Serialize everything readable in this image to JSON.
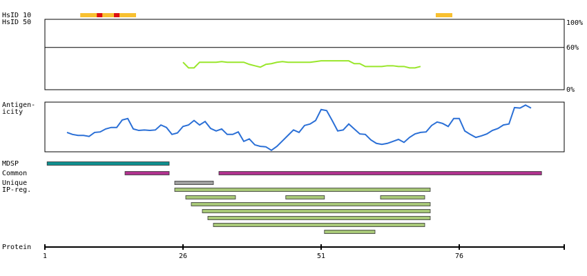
{
  "chart_data": {
    "type": "protein-map",
    "xlabel": "Protein",
    "xlim": [
      1,
      95
    ],
    "xticks": [
      1,
      26,
      51,
      76
    ],
    "hsid": [
      {
        "name": "HsID 10",
        "segments": [
          {
            "start": 7.4,
            "end": 17.5,
            "color": "#f8c030"
          },
          {
            "start": 10.4,
            "end": 11.4,
            "color": "#dd1111"
          },
          {
            "start": 13.5,
            "end": 14.5,
            "color": "#dd1111"
          },
          {
            "start": 71.75,
            "end": 74.75,
            "color": "#f8c030"
          }
        ]
      },
      {
        "name": "HsID 50",
        "segments": []
      }
    ],
    "similarity": {
      "ylim": [
        0,
        100
      ],
      "yticks": [
        {
          "value": 0,
          "label": "0%"
        },
        {
          "value": 60,
          "label": "60%"
        },
        {
          "value": 100,
          "label": "100%"
        }
      ],
      "color": "#99e62a",
      "x": [
        26,
        27,
        28,
        29,
        30,
        31,
        32,
        33,
        34,
        35,
        36,
        37,
        38,
        39,
        40,
        41,
        42,
        43,
        44,
        45,
        46,
        47,
        48,
        49,
        50,
        51,
        52,
        53,
        54,
        55,
        56,
        57,
        58,
        59,
        60,
        61,
        62,
        63,
        64,
        65,
        66,
        67,
        68,
        69
      ],
      "values": [
        39,
        31,
        31,
        39,
        39,
        39,
        39,
        40,
        39,
        39,
        39,
        39,
        36,
        34,
        32,
        36,
        37,
        39,
        40,
        39,
        39,
        39,
        39,
        39,
        40,
        41,
        41,
        41,
        41,
        41,
        41,
        37,
        37,
        33,
        33,
        33,
        33,
        34,
        34,
        33,
        33,
        31,
        31,
        33
      ]
    },
    "antigenicity": {
      "label": [
        "Antigen-",
        "icity"
      ],
      "ylim": [
        0,
        100
      ],
      "color": "#2a6fd6",
      "x": [
        5,
        6,
        7,
        8,
        9,
        10,
        11,
        12,
        13,
        14,
        15,
        16,
        17,
        18,
        19,
        20,
        21,
        22,
        23,
        24,
        25,
        26,
        27,
        28,
        29,
        30,
        31,
        32,
        33,
        34,
        35,
        36,
        37,
        38,
        39,
        40,
        41,
        42,
        43,
        44,
        45,
        46,
        47,
        48,
        49,
        50,
        51,
        52,
        53,
        54,
        55,
        56,
        57,
        58,
        59,
        60,
        61,
        62,
        63,
        64,
        65,
        66,
        67,
        68,
        69,
        70,
        71,
        72,
        73,
        74,
        75,
        76,
        77,
        78,
        79,
        80,
        81,
        82,
        83,
        84,
        85,
        86,
        87,
        88,
        89
      ],
      "values": [
        39,
        35,
        33,
        33,
        31,
        39,
        40,
        46,
        49,
        49,
        64,
        67,
        46,
        43,
        44,
        43,
        44,
        54,
        49,
        35,
        38,
        51,
        54,
        63,
        54,
        61,
        47,
        42,
        46,
        35,
        35,
        40,
        21,
        26,
        14,
        11,
        10,
        3,
        11,
        22,
        33,
        44,
        39,
        53,
        56,
        63,
        85,
        83,
        63,
        42,
        44,
        56,
        46,
        36,
        35,
        24,
        17,
        15,
        17,
        21,
        25,
        19,
        29,
        36,
        39,
        40,
        53,
        60,
        57,
        51,
        67,
        67,
        42,
        35,
        29,
        32,
        36,
        43,
        47,
        54,
        56,
        89,
        88,
        94,
        88
      ]
    },
    "features": [
      {
        "name": "MDSP",
        "color": "#0f9090",
        "rows": [
          [
            {
              "start": 1.4,
              "end": 23.5
            }
          ]
        ]
      },
      {
        "name": "Common",
        "color": "#b0338f",
        "rows": [
          [
            {
              "start": 15.5,
              "end": 23.5
            },
            {
              "start": 32.5,
              "end": 90.9
            }
          ]
        ]
      },
      {
        "name": "Unique",
        "color": "#a0a0a0",
        "rows": [
          [
            {
              "start": 24.5,
              "end": 31.5
            }
          ]
        ]
      },
      {
        "name": "IP-reg.",
        "color": "#a8c878",
        "rows": [
          [
            {
              "start": 24.5,
              "end": 70.75
            }
          ],
          [
            {
              "start": 26.5,
              "end": 35.5
            },
            {
              "start": 44.6,
              "end": 51.6
            },
            {
              "start": 61.75,
              "end": 69.75
            }
          ],
          [
            {
              "start": 27.5,
              "end": 70.75
            }
          ],
          [
            {
              "start": 29.5,
              "end": 70.75
            }
          ],
          [
            {
              "start": 30.5,
              "end": 70.75
            }
          ],
          [
            {
              "start": 31.5,
              "end": 69.75
            }
          ],
          [
            {
              "start": 51.6,
              "end": 60.75
            }
          ]
        ]
      }
    ]
  }
}
